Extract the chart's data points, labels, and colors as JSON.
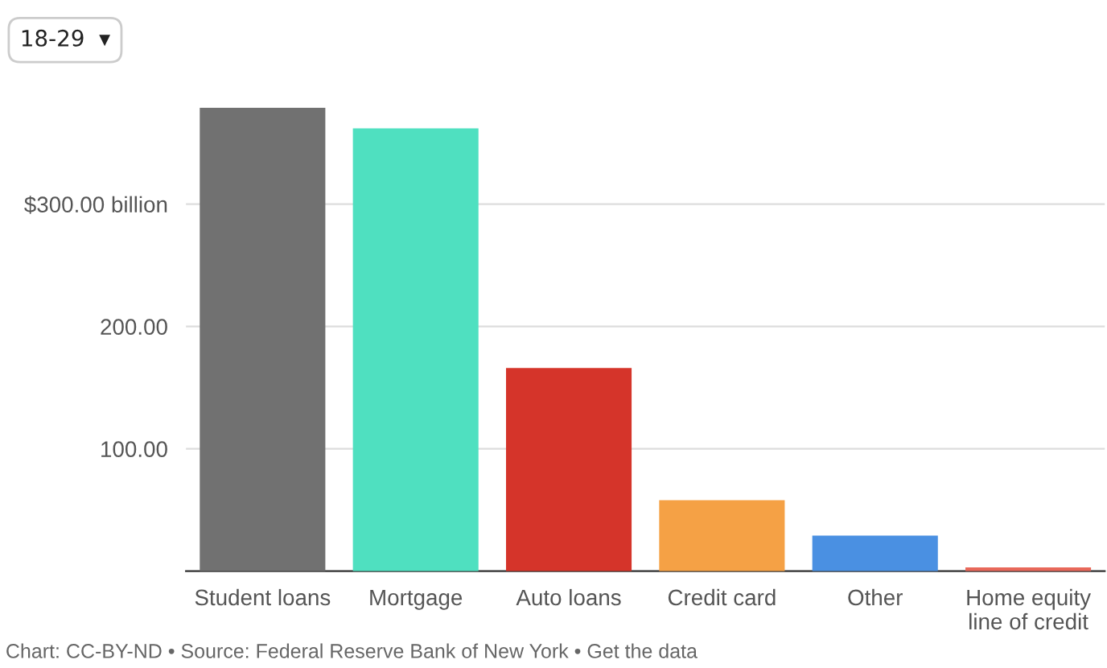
{
  "chart_data": {
    "type": "bar",
    "categories": [
      "Student loans",
      "Mortgage",
      "Auto loans",
      "Credit card",
      "Other",
      "Home equity\nline of credit"
    ],
    "colors": [
      "#717171",
      "#4fe0c0",
      "#d5342a",
      "#f5a145",
      "#4a90e2",
      "#e8685a"
    ],
    "values": [
      379,
      362,
      166,
      58,
      29,
      3
    ],
    "ylim": [
      0,
      379
    ],
    "yticks": [
      {
        "value": 0,
        "label": null
      },
      {
        "value": 100,
        "label": "100.00"
      },
      {
        "value": 200,
        "label": "200.00"
      },
      {
        "value": 300,
        "label": "$300.00 billion"
      }
    ],
    "grid": "y",
    "annotations": [
      "18-29  ▾",
      "Chart: CC-BY-ND • Source: Federal Reserve Bank of New York • Get the data"
    ]
  }
}
